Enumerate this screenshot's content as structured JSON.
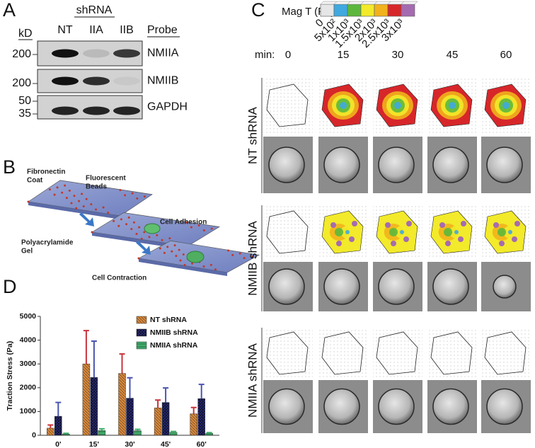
{
  "panels": {
    "a": "A",
    "b": "B",
    "c": "C",
    "d": "D"
  },
  "blot": {
    "group_label": "shRNA",
    "lanes": [
      "NT",
      "IIA",
      "IIB"
    ],
    "probe_header": "Probe",
    "kd_header": "kD",
    "rows": [
      {
        "markers": [
          "200"
        ],
        "probe": "NMIIA"
      },
      {
        "markers": [
          "200"
        ],
        "probe": "NMIIB"
      },
      {
        "markers": [
          "50",
          "35"
        ],
        "probe": "GAPDH"
      }
    ]
  },
  "schematic": {
    "labels": [
      {
        "lines": [
          "Fibronectin",
          "Coat"
        ]
      },
      {
        "lines": [
          "Fluorescent",
          "Beads"
        ]
      },
      {
        "lines": [
          "Polyacrylamide",
          "Gel"
        ]
      },
      {
        "lines": [
          "Cell Adhesion"
        ]
      },
      {
        "lines": [
          "Cell Contraction"
        ]
      }
    ]
  },
  "traction": {
    "scale_title": "Mag T (Pa)",
    "scale_labels": [
      "0",
      "5x10²",
      "1x10³",
      "1.5x10³",
      "2x10³",
      "2.5x10³",
      "3x10³"
    ],
    "scale_colors": [
      "#e6e6e6",
      "#3fa9e0",
      "#5cb83c",
      "#f2ea2a",
      "#f2b21c",
      "#d7262a",
      "#a56bb0"
    ],
    "time_header": "min:",
    "times": [
      "0",
      "15",
      "30",
      "45",
      "60"
    ],
    "rows": [
      "NT shRNA",
      "NMIIB shRNA",
      "NMIIA shRNA"
    ]
  },
  "chart_data": {
    "type": "bar",
    "y_label": "Traction Stress (Pa)",
    "categories": [
      "0'",
      "15'",
      "30'",
      "45'",
      "60'"
    ],
    "series": [
      {
        "name": "NT shRNA",
        "color": "#d98a3d",
        "values": [
          300,
          3000,
          2600,
          1150,
          900
        ],
        "errors": [
          130,
          1400,
          820,
          330,
          270
        ]
      },
      {
        "name": "NMIIB shRNA",
        "color": "#2d3080",
        "values": [
          800,
          2430,
          1560,
          1380,
          1540
        ],
        "errors": [
          580,
          1530,
          860,
          610,
          600
        ]
      },
      {
        "name": "NMIIA shRNA",
        "color": "#3fae6a",
        "values": [
          50,
          200,
          190,
          120,
          80
        ],
        "errors": [
          30,
          70,
          60,
          40,
          30
        ]
      }
    ],
    "error_colors": [
      "#c8333a",
      "#4a55b0",
      "#3fae6a"
    ],
    "ylim": [
      0,
      5000
    ],
    "yticks": [
      0,
      1000,
      2000,
      3000,
      4000,
      5000
    ],
    "grid": false,
    "legend": "upper right"
  }
}
